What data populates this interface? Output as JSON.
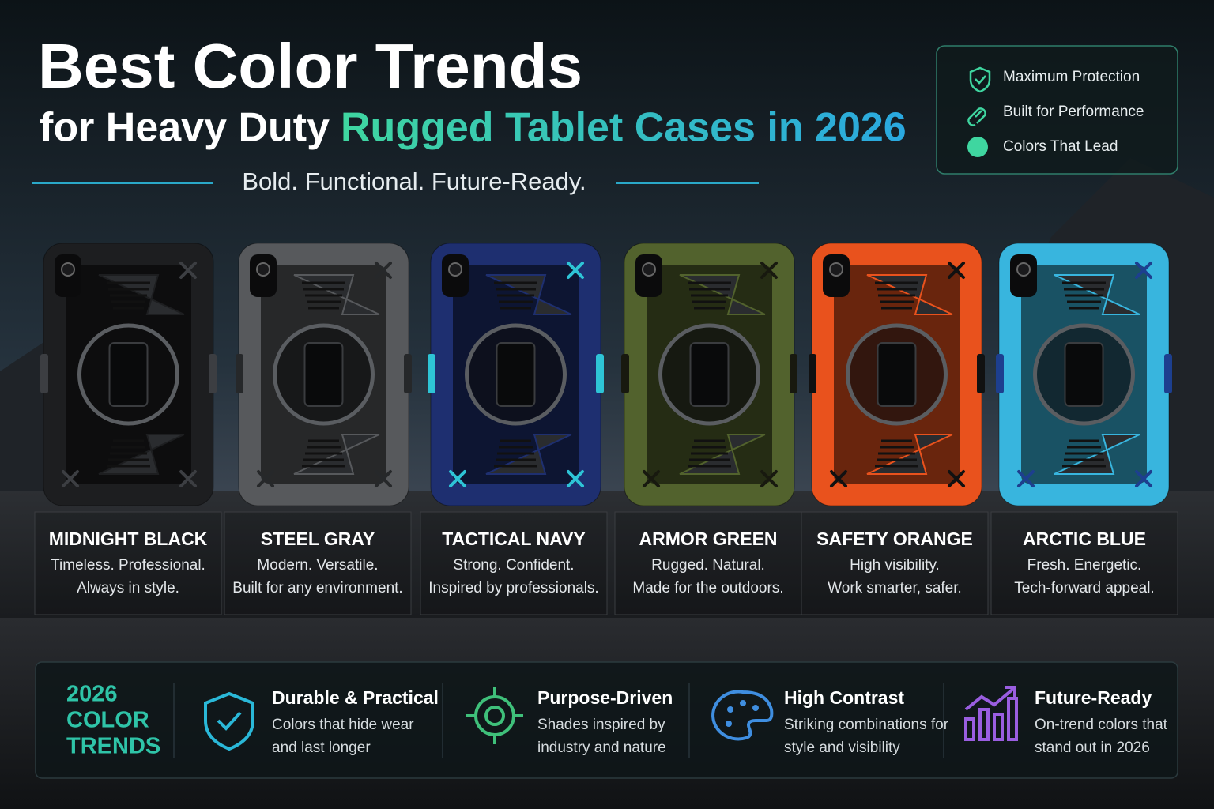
{
  "header": {
    "title": "Best Color Trends",
    "subtitle_plain": "for Heavy Duty",
    "subtitle_accent": "Rugged Tablet Cases in 2026",
    "tagline": "Bold. Functional. Future-Ready."
  },
  "badges": [
    "Maximum Protection",
    "Built for Performance",
    "Colors That Lead"
  ],
  "cases": [
    {
      "name": "MIDNIGHT BLACK",
      "lines": [
        "Timeless. Professional.",
        "Always in style."
      ],
      "color": "#1d1e20",
      "accent": "#3c3e42"
    },
    {
      "name": "STEEL GRAY",
      "lines": [
        "Modern. Versatile.",
        "Built for any environment."
      ],
      "color": "#57595c",
      "accent": "#26282a"
    },
    {
      "name": "TACTICAL NAVY",
      "lines": [
        "Strong. Confident.",
        "Inspired by professionals."
      ],
      "color": "#1e2f70",
      "accent": "#2ec4d6"
    },
    {
      "name": "ARMOR GREEN",
      "lines": [
        "Rugged. Natural.",
        "Made for the outdoors."
      ],
      "color": "#52622d",
      "accent": "#18190f"
    },
    {
      "name": "SAFETY ORANGE",
      "lines": [
        "High visibility.",
        "Work smarter, safer."
      ],
      "color": "#e9521d",
      "accent": "#111111"
    },
    {
      "name": "ARCTIC BLUE",
      "lines": [
        "Fresh. Energetic.",
        "Tech-forward appeal."
      ],
      "color": "#38b5de",
      "accent": "#1d3f8f"
    }
  ],
  "footer": {
    "label": [
      "2026",
      "COLOR",
      "TRENDS"
    ],
    "features": [
      {
        "title": "Durable & Practical",
        "lines": [
          "Colors that hide wear",
          "and last longer"
        ]
      },
      {
        "title": "Purpose-Driven",
        "lines": [
          "Shades inspired by",
          "industry and nature"
        ]
      },
      {
        "title": "High Contrast",
        "lines": [
          "Striking combinations for",
          "style and visibility"
        ]
      },
      {
        "title": "Future-Ready",
        "lines": [
          "On-trend colors that",
          "stand out in 2026"
        ]
      }
    ]
  }
}
